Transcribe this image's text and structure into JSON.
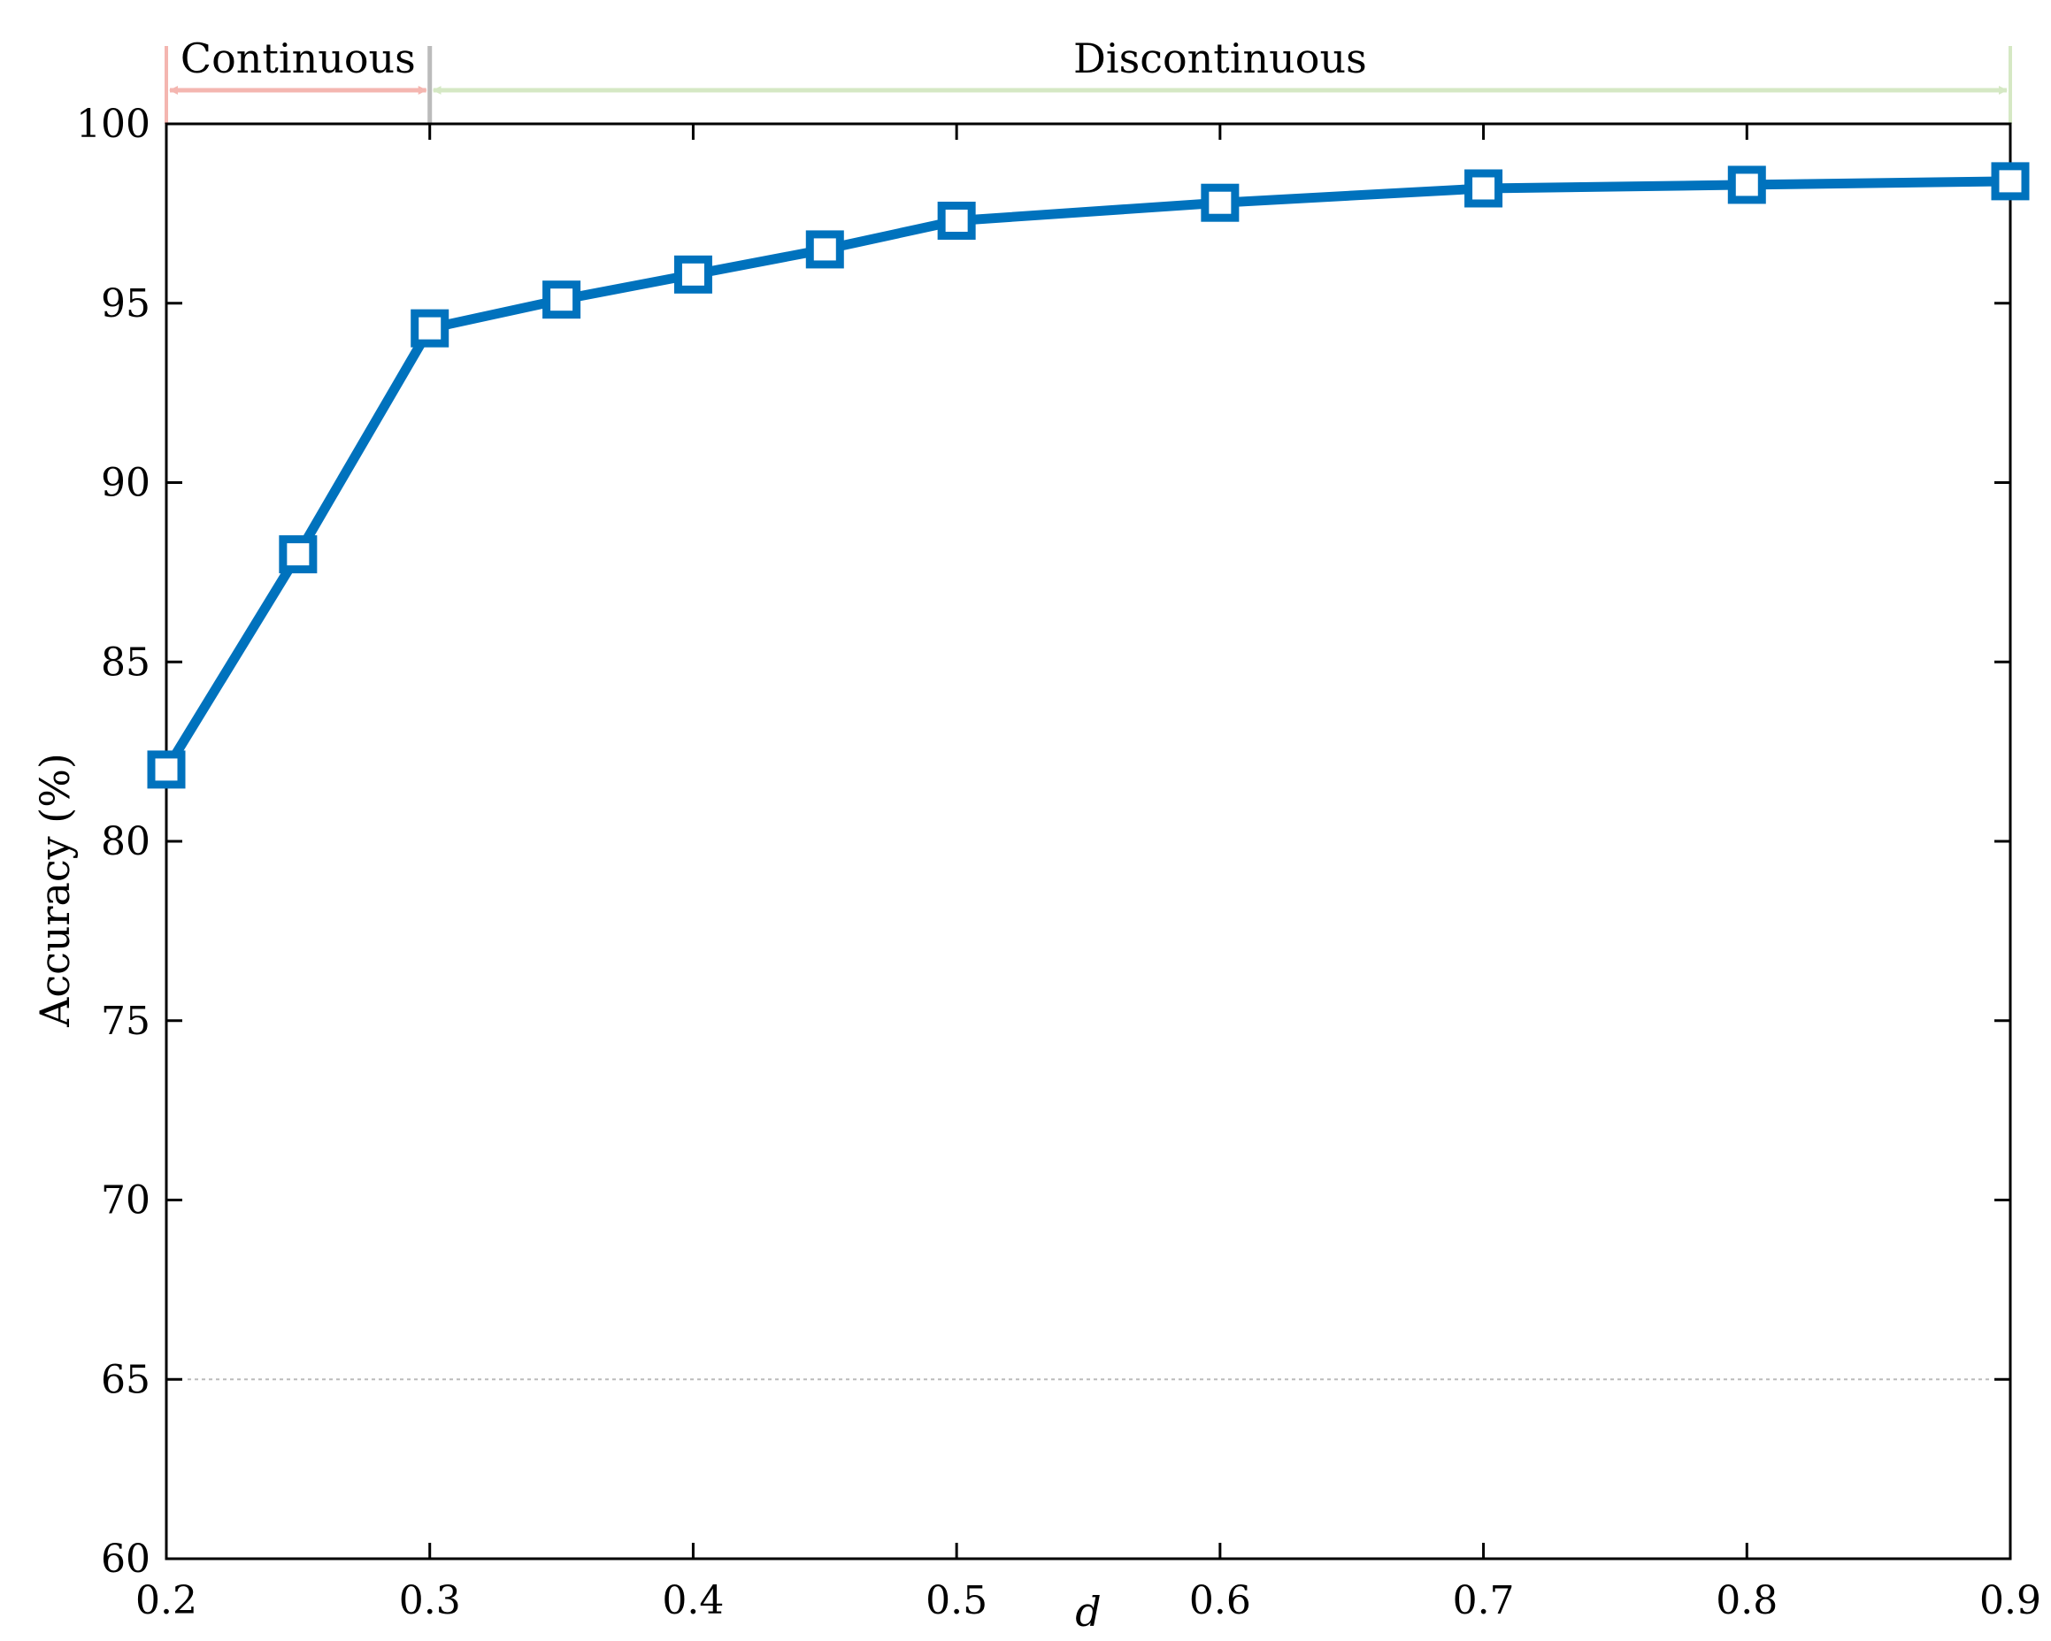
{
  "chart_data": {
    "type": "line",
    "xlabel": "d",
    "ylabel": "Accuracy (%)",
    "xlim": [
      0.2,
      0.9
    ],
    "ylim": [
      60,
      100
    ],
    "xticks": [
      "0.2",
      "0.3",
      "0.4",
      "0.5",
      "0.6",
      "0.7",
      "0.8",
      "0.9"
    ],
    "yticks": [
      "60",
      "65",
      "70",
      "75",
      "80",
      "85",
      "90",
      "95",
      "100"
    ],
    "grid": false,
    "series": [
      {
        "marker": "square",
        "color": "#0072BD",
        "x": [
          0.2,
          0.25,
          0.3,
          0.35,
          0.4,
          0.45,
          0.5,
          0.6,
          0.7,
          0.8,
          0.9
        ],
        "y": [
          82.0,
          88.0,
          94.3,
          95.1,
          95.8,
          96.5,
          97.3,
          97.8,
          98.2,
          98.3,
          98.4
        ]
      }
    ],
    "annotations": [
      {
        "label": "Continuous",
        "from": 0.2,
        "to": 0.3,
        "color": "#F4B6B0"
      },
      {
        "label": "Discontinuous",
        "from": 0.3,
        "to": 0.9,
        "color": "#D5E8C4"
      }
    ],
    "reference_line": {
      "y": 65,
      "style": "dashed",
      "color": "#bbbbbb"
    }
  }
}
